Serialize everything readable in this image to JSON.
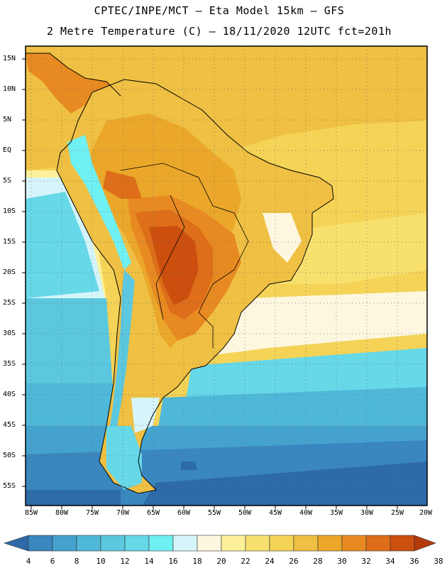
{
  "header": {
    "line1": "CPTEC/INPE/MCT –  Eta Model 15km – GFS",
    "line2": "2 Metre Temperature (C) – 18/11/2020 12UTC fct=201h"
  },
  "map": {
    "lat_labels": [
      "15N",
      "10N",
      "5N",
      "EQ",
      "5S",
      "10S",
      "15S",
      "20S",
      "25S",
      "30S",
      "35S",
      "40S",
      "45S",
      "50S",
      "55S"
    ],
    "lon_labels": [
      "85W",
      "80W",
      "75W",
      "70W",
      "65W",
      "60W",
      "55W",
      "50W",
      "45W",
      "40W",
      "35W",
      "30W",
      "25W",
      "20W"
    ]
  },
  "colorbar": {
    "values": [
      "4",
      "6",
      "8",
      "10",
      "12",
      "14",
      "16",
      "18",
      "20",
      "22",
      "24",
      "26",
      "28",
      "30",
      "32",
      "34",
      "36",
      "38"
    ],
    "colors": [
      "#2d6aa8",
      "#3a86bf",
      "#45a2cf",
      "#4fb8d9",
      "#5cc8df",
      "#66d8e8",
      "#6ff0f2",
      "#d6f5fb",
      "#fef7e0",
      "#fdf09a",
      "#f7e06e",
      "#f4d357",
      "#efc043",
      "#eba72a",
      "#e88a22",
      "#de6e19",
      "#cc4f10",
      "#b33a0b"
    ]
  }
}
